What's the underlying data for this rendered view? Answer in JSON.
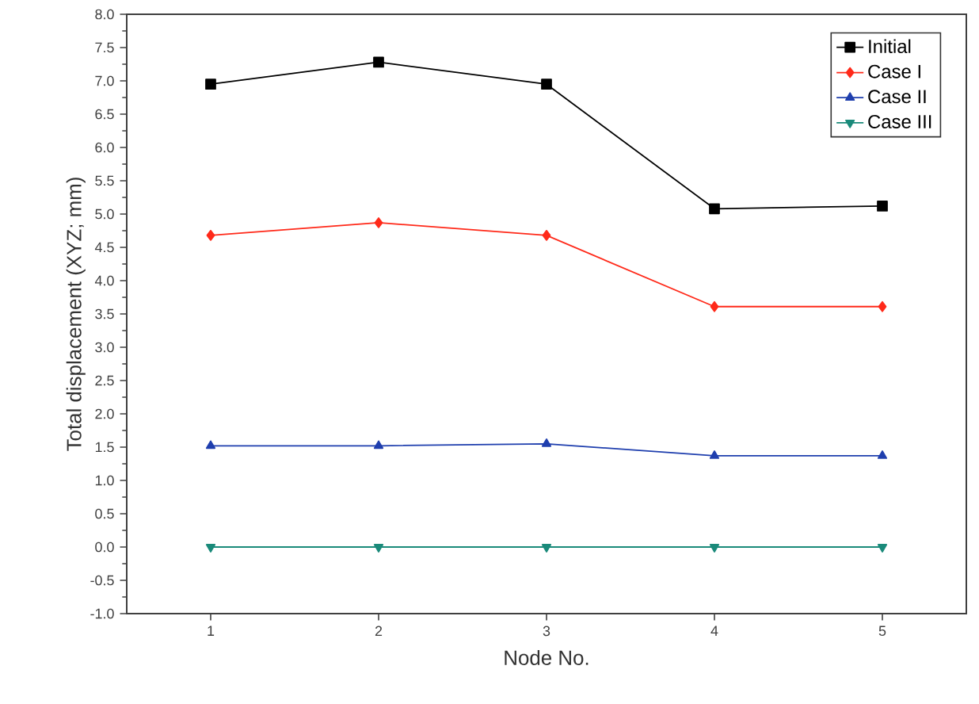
{
  "chart_data": {
    "type": "line",
    "xlabel": "Node No.",
    "ylabel": "Total displacement (XYZ; mm)",
    "x": [
      1,
      2,
      3,
      4,
      5
    ],
    "series": [
      {
        "name": "Initial",
        "color": "#000000",
        "marker": "square",
        "values": [
          6.95,
          7.28,
          6.95,
          5.08,
          5.12
        ]
      },
      {
        "name": "Case I",
        "color": "#ff2a1a",
        "marker": "diamond",
        "values": [
          4.68,
          4.87,
          4.68,
          3.61,
          3.61
        ]
      },
      {
        "name": "Case II",
        "color": "#1f3fae",
        "marker": "triangle",
        "values": [
          1.52,
          1.52,
          1.55,
          1.37,
          1.37
        ]
      },
      {
        "name": "Case III",
        "color": "#1a8a7a",
        "marker": "triangle-down",
        "values": [
          0,
          0,
          0,
          0,
          0
        ]
      }
    ],
    "xlim": [
      0.5,
      5.5
    ],
    "xticks": [
      1,
      2,
      3,
      4,
      5
    ],
    "ylim": [
      -1,
      8
    ],
    "yticks": [
      {
        "value": -1,
        "label": "-1.0"
      },
      {
        "value": -0.5,
        "label": "-0.5"
      },
      {
        "value": 0,
        "label": "0.0"
      },
      {
        "value": 0.5,
        "label": "0.5"
      },
      {
        "value": 1,
        "label": "1.0"
      },
      {
        "value": 1.5,
        "label": "1.5"
      },
      {
        "value": 2,
        "label": "2.0"
      },
      {
        "value": 2.5,
        "label": "2.5"
      },
      {
        "value": 3,
        "label": "3.0"
      },
      {
        "value": 3.5,
        "label": "3.5"
      },
      {
        "value": 4,
        "label": "4.0"
      },
      {
        "value": 4.5,
        "label": "4.5"
      },
      {
        "value": 5,
        "label": "5.0"
      },
      {
        "value": 5.5,
        "label": "5.5"
      },
      {
        "value": 6,
        "label": "6.0"
      },
      {
        "value": 6.5,
        "label": "6.5"
      },
      {
        "value": 7,
        "label": "7.0"
      },
      {
        "value": 7.5,
        "label": "7.5"
      },
      {
        "value": 8,
        "label": "8.0"
      }
    ],
    "legend": "top right",
    "grid": false,
    "line_style": "solid"
  }
}
